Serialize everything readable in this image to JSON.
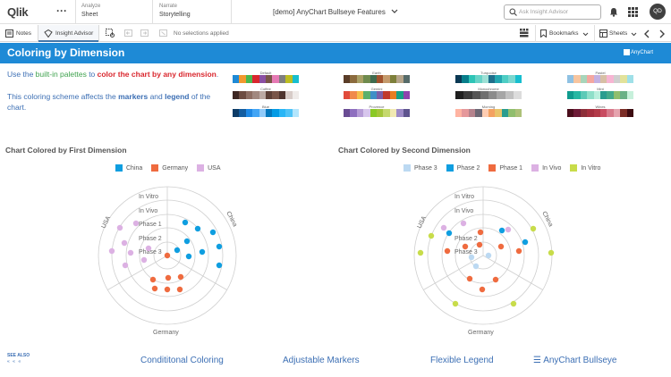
{
  "topbar": {
    "logo": "Qlik",
    "more": "···",
    "analyze_label": "Analyze",
    "analyze_value": "Sheet",
    "narrate_label": "Narrate",
    "narrate_value": "Storytelling",
    "app_title": "[demo] AnyChart Bullseye Features",
    "search_placeholder": "Ask Insight Advisor",
    "avatar_initials": "QD"
  },
  "toolbar": {
    "notes": "Notes",
    "insight_advisor": "Insight Advisor",
    "no_selections": "No selections applied",
    "bookmarks": "Bookmarks",
    "sheets": "Sheets"
  },
  "header": {
    "title": "Coloring by Dimension",
    "anychart": "AnyChart"
  },
  "intro": {
    "line1_a": "Use the ",
    "line1_b": "built-in palettes",
    "line1_c": " to ",
    "line1_d": "color the chart by any dimension",
    "line1_e": ".",
    "line2_a": "This coloring scheme affects the ",
    "line2_b": "markers",
    "line2_c": " and ",
    "line2_d": "legend",
    "line2_e": " of the",
    "line3": "chart."
  },
  "palettes": [
    {
      "name": "Default",
      "colors": [
        "#1e8ad6",
        "#f2992e",
        "#4bb84f",
        "#d9272e",
        "#8b4fa3",
        "#795548",
        "#e57ab4",
        "#7f7f7f",
        "#bcbd22",
        "#17becf"
      ]
    },
    {
      "name": "Earth",
      "colors": [
        "#5a3d28",
        "#8b6b3e",
        "#a9a066",
        "#6f8b4e",
        "#3f6b4f",
        "#a0522d",
        "#c49a6c",
        "#7d7f3a",
        "#b5a48a",
        "#566b69"
      ]
    },
    {
      "name": "Turquoise",
      "colors": [
        "#0b3954",
        "#087e8b",
        "#2ec4b6",
        "#68d3c7",
        "#9de0d5",
        "#1f6f8b",
        "#23a6b0",
        "#4ecdc4",
        "#7ad7cf",
        "#17becf"
      ]
    },
    {
      "name": "Pastel",
      "colors": [
        "#8fc1e3",
        "#f7c59f",
        "#a8d5ba",
        "#f4a7a0",
        "#c3b1e1",
        "#d7bfa5",
        "#f7b5d3",
        "#cfcfcf",
        "#e2e29a",
        "#9fe0e8"
      ]
    },
    {
      "name": "Coffee",
      "colors": [
        "#3e2723",
        "#6d4c41",
        "#8d6e63",
        "#a1887f",
        "#bcaaa4",
        "#5d4037",
        "#795548",
        "#4e342e",
        "#d7ccc8",
        "#efebe9"
      ]
    },
    {
      "name": "Gemini",
      "colors": [
        "#e14b3b",
        "#f08a4b",
        "#f5c04b",
        "#5bb06b",
        "#3e8fc7",
        "#7b5ea7",
        "#c0392b",
        "#e67e22",
        "#16a085",
        "#8e44ad"
      ]
    },
    {
      "name": "Monochrome",
      "colors": [
        "#1f1f1f",
        "#3a3a3a",
        "#555555",
        "#707070",
        "#8b8b8b",
        "#a6a6a6",
        "#c1c1c1",
        "#dcdcdc"
      ]
    },
    {
      "name": "Mint",
      "colors": [
        "#0f9b8e",
        "#26b7a3",
        "#5ccab7",
        "#8edfc9",
        "#b9efdd",
        "#2a9d8f",
        "#43aa8b",
        "#90be6d",
        "#6ab187",
        "#c7f0db"
      ]
    },
    {
      "name": "Blue",
      "colors": [
        "#0d3b66",
        "#145da0",
        "#1e88e5",
        "#42a5f5",
        "#90caf9",
        "#0277bd",
        "#039be5",
        "#29b6f6",
        "#4fc3f7",
        "#b3e5fc"
      ]
    },
    {
      "name": "Provence",
      "colors": [
        "#6a4c93",
        "#8e6fbf",
        "#b69cd6",
        "#d7c6ec",
        "#8ac926",
        "#a4c639",
        "#c5d86d",
        "#f1e9b3",
        "#9d8ac7",
        "#5e548e"
      ]
    },
    {
      "name": "Morning",
      "colors": [
        "#ffb4a2",
        "#e5989b",
        "#b5838d",
        "#6d6875",
        "#ffcdb2",
        "#f4a261",
        "#e9c46a",
        "#2a9d8f",
        "#90be6d",
        "#adc178"
      ]
    },
    {
      "name": "Wines",
      "colors": [
        "#4a0e1c",
        "#6d1a36",
        "#8c2f39",
        "#a4303f",
        "#b23a48",
        "#c94c61",
        "#d77a8b",
        "#e5a3ae",
        "#7b2d26",
        "#3d0c11"
      ]
    }
  ],
  "chart_left": {
    "title": "Chart Colored by First Dimension",
    "legend": [
      {
        "label": "China",
        "color": "#0f9ee0"
      },
      {
        "label": "Germany",
        "color": "#ef6b3f"
      },
      {
        "label": "USA",
        "color": "#dcb1e3"
      }
    ],
    "ring_labels": [
      "In Vitro",
      "In Vivo",
      "Phase 1",
      "Phase 2",
      "Phase 3"
    ],
    "sector_labels": [
      "China",
      "Germany",
      "USA"
    ]
  },
  "chart_right": {
    "title": "Chart Colored by Second Dimension",
    "legend": [
      {
        "label": "Phase 3",
        "color": "#bcd9f2"
      },
      {
        "label": "Phase 2",
        "color": "#0f9ee0"
      },
      {
        "label": "Phase 1",
        "color": "#ef6b3f"
      },
      {
        "label": "In Vivo",
        "color": "#dcb1e3"
      },
      {
        "label": "In Vitro",
        "color": "#c8dc4a"
      }
    ],
    "ring_labels": [
      "In Vitro",
      "In Vivo",
      "Phase 2",
      "Phase 3"
    ],
    "sector_labels": [
      "China",
      "Germany",
      "USA"
    ]
  },
  "see_also": "SEE ALSO",
  "see_also_arrows": "« « «",
  "links": [
    "Condititonal Coloring",
    "Adjustable Markers",
    "Flexible Legend",
    "☰ AnyChart Bullseye"
  ]
}
